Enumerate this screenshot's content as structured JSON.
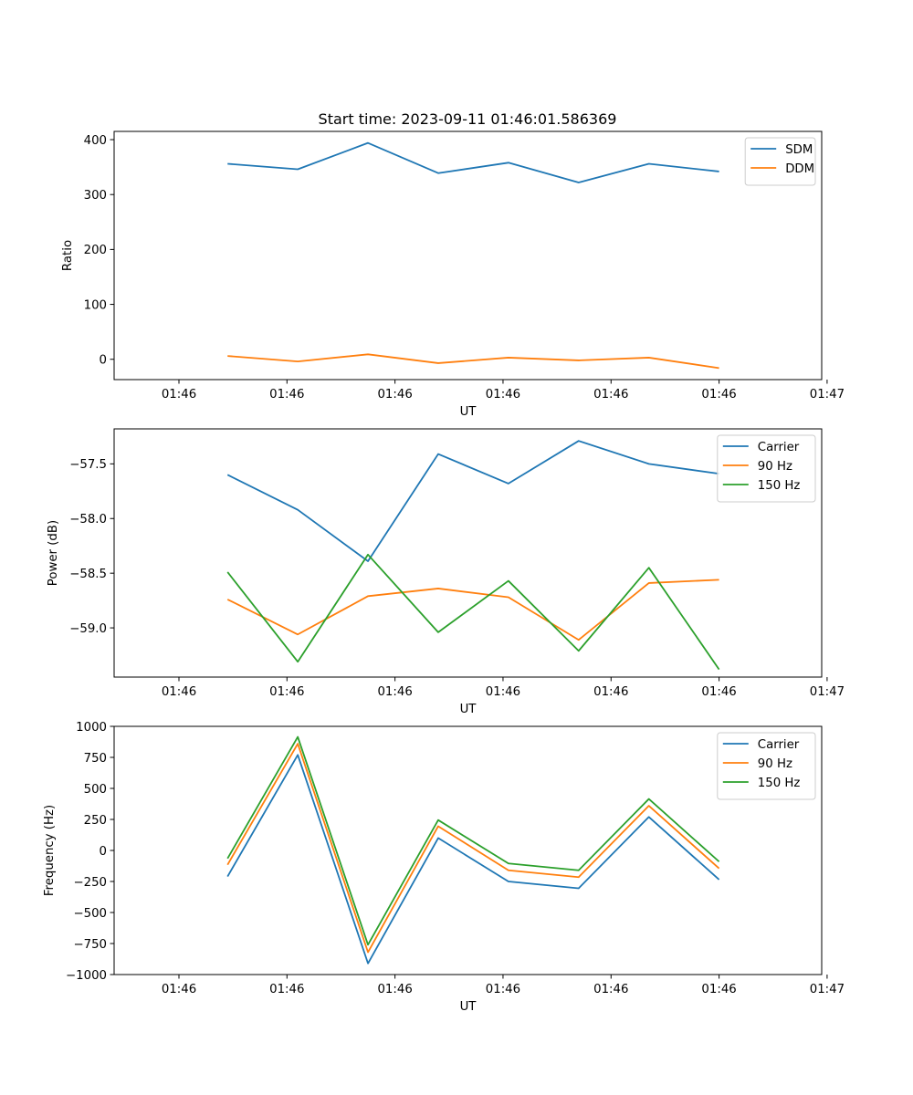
{
  "figure": {
    "title": "Start time: 2023-09-11 01:46:01.586369"
  },
  "colors": {
    "blue": "#1f77b4",
    "orange": "#ff7f0e",
    "green": "#2ca02c"
  },
  "chart_data": [
    {
      "type": "line",
      "title": "Start time: 2023-09-11 01:46:01.586369",
      "xlabel": "UT",
      "ylabel": "Ratio",
      "x": [
        0.45,
        1.1,
        1.75,
        2.4,
        3.05,
        3.7,
        4.35,
        5.0
      ],
      "xlim": [
        -0.6,
        5.95
      ],
      "xticks": [
        0,
        1,
        2,
        3,
        4,
        5,
        6
      ],
      "xticklabels": [
        "01:46",
        "01:46",
        "01:46",
        "01:46",
        "01:46",
        "01:46",
        "01:47"
      ],
      "ylim": [
        -37,
        415
      ],
      "yticks": [
        0,
        100,
        200,
        300,
        400
      ],
      "yticklabels": [
        "0",
        "100",
        "200",
        "300",
        "400"
      ],
      "legend_position": "top-right",
      "series": [
        {
          "name": "SDM",
          "color": "#1f77b4",
          "values": [
            356,
            346,
            394,
            339,
            358,
            322,
            356,
            342
          ]
        },
        {
          "name": "DDM",
          "color": "#ff7f0e",
          "values": [
            6,
            -4,
            9,
            -7,
            3,
            -2,
            3,
            -16
          ]
        }
      ]
    },
    {
      "type": "line",
      "title": "",
      "xlabel": "UT",
      "ylabel": "Power (dB)",
      "x": [
        0.45,
        1.1,
        1.75,
        2.4,
        3.05,
        3.7,
        4.35,
        5.0
      ],
      "xlim": [
        -0.6,
        5.95
      ],
      "xticks": [
        0,
        1,
        2,
        3,
        4,
        5,
        6
      ],
      "xticklabels": [
        "01:46",
        "01:46",
        "01:46",
        "01:46",
        "01:46",
        "01:46",
        "01:47"
      ],
      "ylim": [
        -59.45,
        -57.18
      ],
      "yticks": [
        -59.0,
        -58.5,
        -58.0,
        -57.5
      ],
      "yticklabels": [
        "−59.0",
        "−58.5",
        "−58.0",
        "−57.5"
      ],
      "legend_position": "top-right",
      "series": [
        {
          "name": "Carrier",
          "color": "#1f77b4",
          "values": [
            -57.6,
            -57.92,
            -58.39,
            -57.41,
            -57.68,
            -57.29,
            -57.5,
            -57.59
          ]
        },
        {
          "name": "90 Hz",
          "color": "#ff7f0e",
          "values": [
            -58.74,
            -59.06,
            -58.71,
            -58.64,
            -58.72,
            -59.11,
            -58.59,
            -58.56
          ]
        },
        {
          "name": "150 Hz",
          "color": "#2ca02c",
          "values": [
            -58.49,
            -59.31,
            -58.33,
            -59.04,
            -58.57,
            -59.21,
            -58.45,
            -59.38
          ]
        }
      ]
    },
    {
      "type": "line",
      "title": "",
      "xlabel": "UT",
      "ylabel": "Frequency (Hz)",
      "x": [
        0.45,
        1.1,
        1.75,
        2.4,
        3.05,
        3.7,
        4.35,
        5.0
      ],
      "xlim": [
        -0.6,
        5.95
      ],
      "xticks": [
        0,
        1,
        2,
        3,
        4,
        5,
        6
      ],
      "xticklabels": [
        "01:46",
        "01:46",
        "01:46",
        "01:46",
        "01:46",
        "01:46",
        "01:47"
      ],
      "ylim": [
        -1000,
        1000
      ],
      "yticks": [
        -1000,
        -750,
        -500,
        -250,
        0,
        250,
        500,
        750,
        1000
      ],
      "yticklabels": [
        "−1000",
        "−750",
        "−500",
        "−250",
        "0",
        "250",
        "500",
        "750",
        "1000"
      ],
      "legend_position": "top-right",
      "series": [
        {
          "name": "Carrier",
          "color": "#1f77b4",
          "values": [
            -210,
            770,
            -910,
            100,
            -250,
            -305,
            270,
            -235
          ]
        },
        {
          "name": "90 Hz",
          "color": "#ff7f0e",
          "values": [
            -115,
            860,
            -820,
            195,
            -160,
            -215,
            360,
            -145
          ]
        },
        {
          "name": "150 Hz",
          "color": "#2ca02c",
          "values": [
            -65,
            915,
            -760,
            245,
            -105,
            -160,
            415,
            -90
          ]
        }
      ]
    }
  ]
}
